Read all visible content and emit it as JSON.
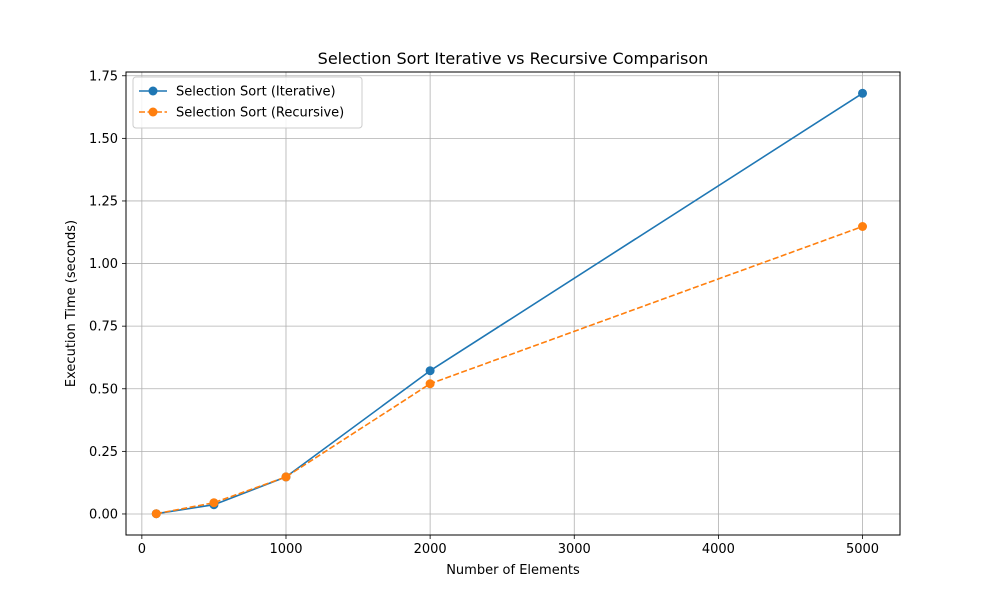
{
  "chart_data": {
    "type": "line",
    "title": "Selection Sort Iterative vs Recursive Comparison",
    "xlabel": "Number of Elements",
    "ylabel": "Execution Time (seconds)",
    "x": [
      100,
      500,
      1000,
      2000,
      5000
    ],
    "xlim": [
      -110,
      5260
    ],
    "ylim": [
      -0.084,
      1.765
    ],
    "xticks": [
      0,
      1000,
      2000,
      3000,
      4000,
      5000
    ],
    "xtick_labels": [
      "0",
      "1000",
      "2000",
      "3000",
      "4000",
      "5000"
    ],
    "yticks": [
      0.0,
      0.25,
      0.5,
      0.75,
      1.0,
      1.25,
      1.5,
      1.75
    ],
    "ytick_labels": [
      "0.00",
      "0.25",
      "0.50",
      "0.75",
      "1.00",
      "1.25",
      "1.50",
      "1.75"
    ],
    "grid": true,
    "legend_position": "top-left",
    "series": [
      {
        "name": "Selection Sort (Iterative)",
        "values": [
          0.001,
          0.037,
          0.148,
          0.572,
          1.68
        ],
        "color": "#1f77b4",
        "line_style": "solid",
        "marker": "circle"
      },
      {
        "name": "Selection Sort (Recursive)",
        "values": [
          0.001,
          0.045,
          0.148,
          0.52,
          1.148
        ],
        "color": "#ff7f0e",
        "line_style": "dashed",
        "marker": "circle"
      }
    ]
  }
}
